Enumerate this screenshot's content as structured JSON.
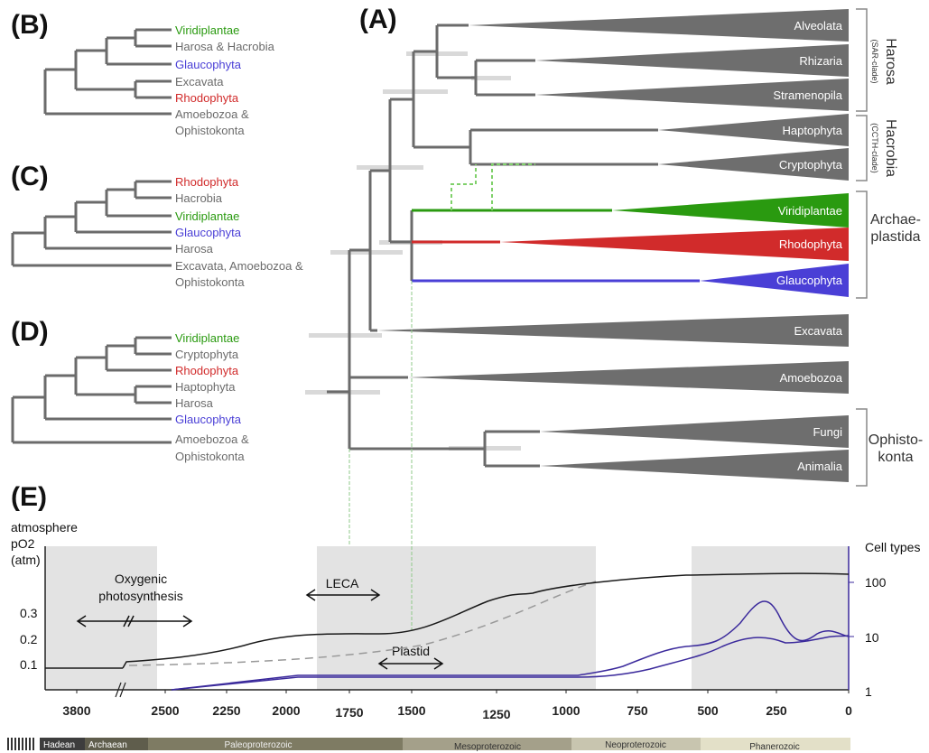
{
  "panels": {
    "A": "(A)",
    "B": "(B)",
    "C": "(C)",
    "D": "(D)",
    "E": "(E)"
  },
  "colors": {
    "gray": "#666666",
    "green": "#2a9a10",
    "red": "#d12b2b",
    "blue": "#4a3fd6",
    "wedge": "#6e6e6e",
    "dark_line": "#2a2a2a",
    "purple": "#3b2a9c"
  },
  "treeA": {
    "taxa": [
      "Alveolata",
      "Rhizaria",
      "Stramenopila",
      "Haptophyta",
      "Cryptophyta",
      "Viridiplantae",
      "Rhodophyta",
      "Glaucophyta",
      "Excavata",
      "Amoebozoa",
      "Fungi",
      "Animalia"
    ],
    "groups": [
      {
        "name": "Harosa",
        "sub": "(SAR-clade)"
      },
      {
        "name": "Hacrobia",
        "sub": "(CCTH-clade)"
      },
      {
        "name_line1": "Archae-",
        "name_line2": "plastida"
      },
      {
        "name_line1": "Ophisto-",
        "name_line2": "konta"
      }
    ]
  },
  "treeB": [
    "Viridiplantae",
    "Harosa & Hacrobia",
    "Glaucophyta",
    "Excavata",
    "Rhodophyta",
    "Amoebozoa &",
    "Ophistokonta"
  ],
  "treeC": [
    "Rhodophyta",
    "Hacrobia",
    "Viridiplantae",
    "Glaucophyta",
    "Harosa",
    "Excavata, Amoebozoa &",
    "Ophistokonta"
  ],
  "treeD": [
    "Viridiplantae",
    "Cryptophyta",
    "Rhodophyta",
    "Haptophyta",
    "Harosa",
    "Glaucophyta",
    "Amoebozoa &",
    "Ophistokonta"
  ],
  "panelE": {
    "left_axis_title": [
      "atmosphere",
      "pO2",
      "(atm)"
    ],
    "left_ticks": [
      "0.3",
      "0.2",
      "0.1"
    ],
    "right_axis_title": "Cell types",
    "right_ticks": [
      "100",
      "10",
      "1"
    ],
    "x_ticks": [
      "3800",
      "2500",
      "2250",
      "2000",
      "1750",
      "1500",
      "1250",
      "1000",
      "750",
      "500",
      "250",
      "0"
    ],
    "annotations": {
      "oxygenic_1": "Oxygenic",
      "oxygenic_2": "photosynthesis",
      "leca": "LECA",
      "plastid": "Plastid"
    }
  },
  "eons": [
    "Hadean",
    "Archaean",
    "Paleoproterozoic",
    "Mesoproterozoic",
    "Neoproterozoic",
    "Phanerozoic"
  ]
}
